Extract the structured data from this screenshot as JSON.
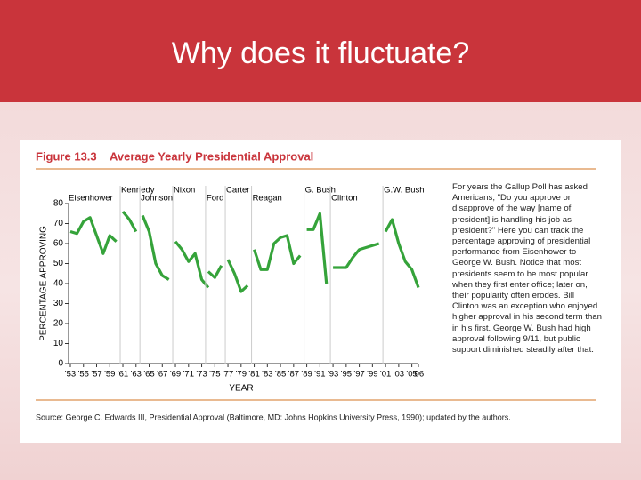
{
  "slide_title": "Why does it fluctuate?",
  "chart_data": {
    "type": "line",
    "figure_label": "Figure 13.3",
    "title": "Average Yearly Presidential Approval",
    "y_label": "PERCENTAGE APPROVING",
    "x_label": "YEAR",
    "ylim": [
      0,
      80
    ],
    "yticks": [
      0,
      10,
      20,
      30,
      40,
      50,
      60,
      70,
      80
    ],
    "xlim": [
      1953,
      2006
    ],
    "xticks": [
      {
        "value": 1953,
        "label": "'53"
      },
      {
        "value": 1955,
        "label": "'55"
      },
      {
        "value": 1957,
        "label": "'57"
      },
      {
        "value": 1959,
        "label": "'59"
      },
      {
        "value": 1961,
        "label": "'61"
      },
      {
        "value": 1963,
        "label": "'63"
      },
      {
        "value": 1965,
        "label": "'65"
      },
      {
        "value": 1967,
        "label": "'67"
      },
      {
        "value": 1969,
        "label": "'69"
      },
      {
        "value": 1971,
        "label": "'71"
      },
      {
        "value": 1973,
        "label": "'73"
      },
      {
        "value": 1975,
        "label": "'75"
      },
      {
        "value": 1977,
        "label": "'77"
      },
      {
        "value": 1979,
        "label": "'79"
      },
      {
        "value": 1981,
        "label": "'81"
      },
      {
        "value": 1983,
        "label": "'83"
      },
      {
        "value": 1985,
        "label": "'85"
      },
      {
        "value": 1987,
        "label": "'87"
      },
      {
        "value": 1989,
        "label": "'89"
      },
      {
        "value": 1991,
        "label": "'91"
      },
      {
        "value": 1993,
        "label": "'93"
      },
      {
        "value": 1995,
        "label": "'95"
      },
      {
        "value": 1997,
        "label": "'97"
      },
      {
        "value": 1999,
        "label": "'99"
      },
      {
        "value": 2001,
        "label": "'01"
      },
      {
        "value": 2003,
        "label": "'03"
      },
      {
        "value": 2005,
        "label": "'05"
      },
      {
        "value": 2006,
        "label": "'06"
      }
    ],
    "series": [
      {
        "name": "Eisenhower",
        "color": "#35a33a",
        "x": [
          1953,
          1954,
          1955,
          1956,
          1957,
          1958,
          1959,
          1960
        ],
        "values": [
          66,
          65,
          71,
          73,
          64,
          55,
          64,
          61
        ]
      },
      {
        "name": "Kennedy",
        "color": "#35a33a",
        "x": [
          1961,
          1962,
          1963
        ],
        "values": [
          76,
          72,
          66
        ]
      },
      {
        "name": "Johnson",
        "color": "#35a33a",
        "x": [
          1964,
          1965,
          1966,
          1967,
          1968
        ],
        "values": [
          74,
          66,
          50,
          44,
          42
        ]
      },
      {
        "name": "Nixon",
        "color": "#35a33a",
        "x": [
          1969,
          1970,
          1971,
          1972,
          1973,
          1974
        ],
        "values": [
          61,
          57,
          51,
          55,
          42,
          38
        ]
      },
      {
        "name": "Ford",
        "color": "#35a33a",
        "x": [
          1974,
          1975,
          1976
        ],
        "values": [
          46,
          43,
          49
        ]
      },
      {
        "name": "Carter",
        "color": "#35a33a",
        "x": [
          1977,
          1978,
          1979,
          1980
        ],
        "values": [
          52,
          45,
          36,
          39
        ]
      },
      {
        "name": "Reagan",
        "color": "#35a33a",
        "x": [
          1981,
          1982,
          1983,
          1984,
          1985,
          1986,
          1987,
          1988
        ],
        "values": [
          57,
          47,
          47,
          60,
          63,
          64,
          50,
          54
        ]
      },
      {
        "name": "G. Bush",
        "color": "#35a33a",
        "x": [
          1989,
          1990,
          1991,
          1992
        ],
        "values": [
          67,
          67,
          75,
          40
        ]
      },
      {
        "name": "Clinton",
        "color": "#35a33a",
        "x": [
          1993,
          1994,
          1995,
          1996,
          1997,
          1998,
          1999,
          2000
        ],
        "values": [
          48,
          48,
          48,
          53,
          57,
          58,
          59,
          60
        ]
      },
      {
        "name": "G.W. Bush",
        "color": "#35a33a",
        "x": [
          2001,
          2002,
          2003,
          2004,
          2005,
          2006
        ],
        "values": [
          66,
          72,
          60,
          51,
          47,
          38
        ]
      }
    ],
    "note": "For years the Gallup Poll has asked Americans, \"Do you approve or disapprove of the way [name of president] is handling his job as president?\" Here you can track the percentage approving of presidential performance from Eisenhower to George W. Bush. Notice that most presidents seem to be most popular when they first enter office; later on, their popularity often erodes. Bill Clinton was an exception who enjoyed higher approval in his second term than in his first. George W. Bush had high approval following 9/11, but public support diminished steadily after that.",
    "source": "Source: George C. Edwards III, Presidential Approval (Baltimore, MD: Johns Hopkins University Press, 1990); updated by the authors."
  }
}
